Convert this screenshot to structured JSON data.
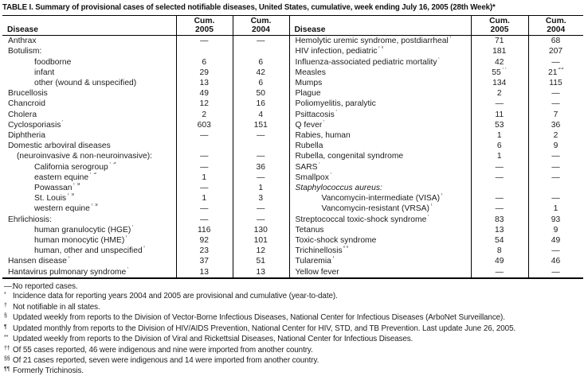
{
  "title": "TABLE I. Summary of provisional cases of selected notifiable diseases, United States, cumulative, week ending July 16, 2005 (28th Week)*",
  "headers": {
    "disease": "Disease",
    "cum": "Cum.",
    "y2005": "2005",
    "y2004": "2004"
  },
  "rows": [
    {
      "left": {
        "label": "Anthrax",
        "cum2005": "—",
        "cum2004": "—"
      },
      "right": {
        "label": "Hemolytic uremic syndrome, postdiarrheal",
        "sup": "†",
        "cum2005": "71",
        "cum2004": "68"
      }
    },
    {
      "left": {
        "label": "Botulism:",
        "cum2005": "",
        "cum2004": ""
      },
      "right": {
        "label": "HIV infection, pediatric",
        "sup": "†¶",
        "cum2005": "181",
        "cum2004": "207"
      }
    },
    {
      "left": {
        "label": "foodborne",
        "indent": 2,
        "cum2005": "6",
        "cum2004": "6"
      },
      "right": {
        "label": "Influenza-associated pediatric mortality",
        "sup": "†**",
        "cum2005": "42",
        "cum2004": "—"
      }
    },
    {
      "left": {
        "label": "infant",
        "indent": 2,
        "cum2005": "29",
        "cum2004": "42"
      },
      "right": {
        "label": "Measles",
        "cum2005": "55",
        "cum2005_sup": "††",
        "cum2004": "21",
        "cum2004_sup": "§§"
      }
    },
    {
      "left": {
        "label": "other (wound & unspecified)",
        "indent": 2,
        "cum2005": "13",
        "cum2004": "6"
      },
      "right": {
        "label": "Mumps",
        "cum2005": "134",
        "cum2004": "115"
      }
    },
    {
      "left": {
        "label": "Brucellosis",
        "cum2005": "49",
        "cum2004": "50"
      },
      "right": {
        "label": "Plague",
        "cum2005": "2",
        "cum2004": "—"
      }
    },
    {
      "left": {
        "label": "Chancroid",
        "cum2005": "12",
        "cum2004": "16"
      },
      "right": {
        "label": "Poliomyelitis, paralytic",
        "cum2005": "—",
        "cum2004": "—"
      }
    },
    {
      "left": {
        "label": "Cholera",
        "cum2005": "2",
        "cum2004": "4"
      },
      "right": {
        "label": "Psittacosis",
        "sup": "†",
        "cum2005": "11",
        "cum2004": "7"
      }
    },
    {
      "left": {
        "label": "Cyclosporiasis",
        "sup": "†",
        "cum2005": "603",
        "cum2004": "151"
      },
      "right": {
        "label": "Q fever",
        "sup": "†",
        "cum2005": "53",
        "cum2004": "36"
      }
    },
    {
      "left": {
        "label": "Diphtheria",
        "cum2005": "—",
        "cum2004": "—"
      },
      "right": {
        "label": "Rabies, human",
        "cum2005": "1",
        "cum2004": "2"
      }
    },
    {
      "left": {
        "label": "Domestic arboviral diseases",
        "cum2005": "",
        "cum2004": ""
      },
      "right": {
        "label": "Rubella",
        "cum2005": "6",
        "cum2004": "9"
      }
    },
    {
      "left": {
        "label": "(neuroinvasive & non-neuroinvasive):",
        "indent": 1,
        "cum2005": "—",
        "cum2004": "—"
      },
      "right": {
        "label": "Rubella, congenital syndrome",
        "cum2005": "1",
        "cum2004": "—"
      }
    },
    {
      "left": {
        "label": "California serogroup",
        "sup": "† §",
        "indent": 2,
        "cum2005": "—",
        "cum2004": "36"
      },
      "right": {
        "label": "SARS",
        "sup": "† **",
        "cum2005": "—",
        "cum2004": "—"
      }
    },
    {
      "left": {
        "label": "eastern equine",
        "sup": "† §",
        "indent": 2,
        "cum2005": "1",
        "cum2004": "—"
      },
      "right": {
        "label": "Smallpox",
        "sup": "†",
        "cum2005": "—",
        "cum2004": "—"
      }
    },
    {
      "left": {
        "label": "Powassan",
        "sup": "† §",
        "indent": 2,
        "cum2005": "—",
        "cum2004": "1"
      },
      "right": {
        "label": "Staphylococcus aureus:",
        "italic": true,
        "cum2005": "",
        "cum2004": ""
      }
    },
    {
      "left": {
        "label": "St. Louis",
        "sup": "† §",
        "indent": 2,
        "cum2005": "1",
        "cum2004": "3"
      },
      "right": {
        "label": "Vancomycin-intermediate (VISA)",
        "sup": "†",
        "indent": 2,
        "cum2005": "—",
        "cum2004": "—"
      }
    },
    {
      "left": {
        "label": "western equine",
        "sup": "† §",
        "indent": 2,
        "cum2005": "—",
        "cum2004": "—"
      },
      "right": {
        "label": "Vancomycin-resistant (VRSA)",
        "sup": "†",
        "indent": 2,
        "cum2005": "—",
        "cum2004": "1"
      }
    },
    {
      "left": {
        "label": "Ehrlichiosis:",
        "cum2005": "—",
        "cum2004": "—"
      },
      "right": {
        "label": "Streptococcal toxic-shock syndrome",
        "sup": "†",
        "cum2005": "83",
        "cum2004": "93"
      }
    },
    {
      "left": {
        "label": "human granulocytic (HGE)",
        "sup": "†",
        "indent": 2,
        "cum2005": "116",
        "cum2004": "130"
      },
      "right": {
        "label": "Tetanus",
        "cum2005": "13",
        "cum2004": "9"
      }
    },
    {
      "left": {
        "label": "human monocytic (HME)",
        "sup": "†",
        "indent": 2,
        "cum2005": "92",
        "cum2004": "101"
      },
      "right": {
        "label": "Toxic-shock syndrome",
        "cum2005": "54",
        "cum2004": "49"
      }
    },
    {
      "left": {
        "label": "human, other and unspecified",
        "sup": "†",
        "indent": 2,
        "cum2005": "23",
        "cum2004": "12"
      },
      "right": {
        "label": "Trichinellosis",
        "sup": "¶¶",
        "cum2005": "8",
        "cum2004": "—"
      }
    },
    {
      "left": {
        "label": "Hansen disease",
        "sup": "†",
        "cum2005": "37",
        "cum2004": "51"
      },
      "right": {
        "label": "Tularemia",
        "sup": "†",
        "cum2005": "49",
        "cum2004": "46"
      }
    },
    {
      "left": {
        "label": "Hantavirus pulmonary syndrome",
        "sup": "†",
        "cum2005": "13",
        "cum2004": "13"
      },
      "right": {
        "label": "Yellow fever",
        "cum2005": "—",
        "cum2004": "—"
      }
    }
  ],
  "footnotes": [
    {
      "marker": "—:",
      "raised": false,
      "text": "No reported cases."
    },
    {
      "marker": "*",
      "raised": true,
      "text": "Incidence data for reporting years 2004 and 2005 are provisional and cumulative (year-to-date)."
    },
    {
      "marker": "†",
      "raised": true,
      "text": "Not notifiable in all states."
    },
    {
      "marker": "§",
      "raised": true,
      "text": "Updated weekly from reports to the Division of Vector-Borne Infectious Diseases, National Center for Infectious Diseases (ArboNet Surveillance)."
    },
    {
      "marker": "¶",
      "raised": true,
      "text": "Updated monthly from reports to the Division of HIV/AIDS Prevention, National Center for HIV, STD, and TB Prevention. Last update June 26, 2005."
    },
    {
      "marker": "**",
      "raised": true,
      "text": "Updated weekly from reports to the Division of Viral and Rickettsial Diseases, National Center for Infectious Diseases."
    },
    {
      "marker": "††",
      "raised": true,
      "text": "Of 55 cases reported, 46 were indigenous and nine were imported from another country."
    },
    {
      "marker": "§§",
      "raised": true,
      "text": "Of 21 cases reported, seven were indigenous and 14 were imported from another country."
    },
    {
      "marker": "¶¶",
      "raised": true,
      "text": "Formerly Trichinosis."
    }
  ]
}
